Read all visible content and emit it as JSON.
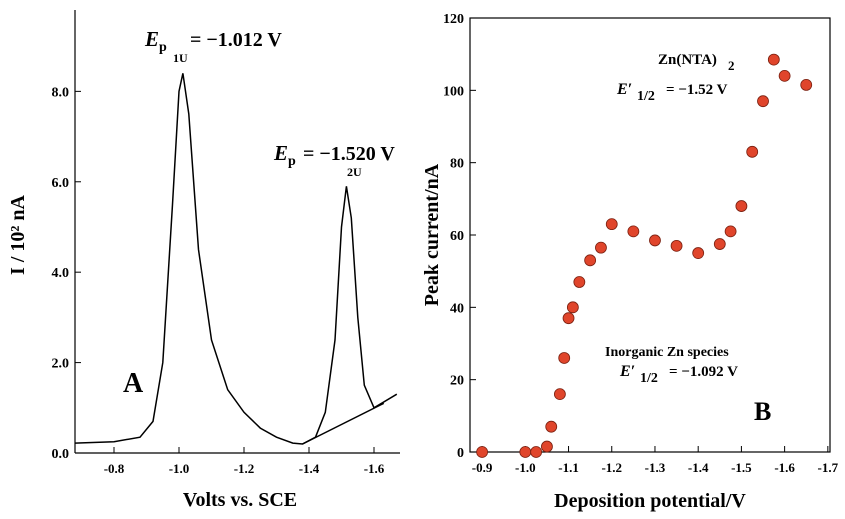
{
  "chart_data": [
    {
      "type": "line",
      "y_label": "I / 10² nA",
      "x_label": "Volts vs. SCE",
      "xlim": [
        -0.68,
        -1.68
      ],
      "ylim": [
        0,
        9.8
      ],
      "xticks": [
        -0.8,
        {
          "value": -1.0,
          "label": "-1.0"
        },
        -1.2,
        -1.4,
        -1.6
      ],
      "yticks": [
        {
          "value": 0,
          "label": "0.0"
        },
        {
          "value": 2,
          "label": "2.0"
        },
        {
          "value": 4,
          "label": "4.0"
        },
        {
          "value": 6,
          "label": "6.0"
        },
        {
          "value": 8,
          "label": "8.0"
        }
      ],
      "series": [
        {
          "color": "#000000",
          "x": [
            -0.68,
            -0.8,
            -0.88,
            -0.92,
            -0.95,
            -0.98,
            -1.0,
            -1.012,
            -1.03,
            -1.06,
            -1.1,
            -1.15,
            -1.2,
            -1.25,
            -1.3,
            -1.35,
            -1.38,
            -1.42,
            -1.45,
            -1.48,
            -1.5,
            -1.515,
            -1.53,
            -1.55,
            -1.57,
            -1.6,
            -1.67
          ],
          "values": [
            0.22,
            0.25,
            0.35,
            0.7,
            2.0,
            5.5,
            8.0,
            8.4,
            7.5,
            4.5,
            2.5,
            1.4,
            0.9,
            0.55,
            0.35,
            0.22,
            0.2,
            0.35,
            0.9,
            2.5,
            5.0,
            5.9,
            5.2,
            3.0,
            1.5,
            1.0,
            1.3
          ]
        },
        {
          "color": "#000000",
          "x": [
            -1.38,
            -1.63
          ],
          "values": [
            0.2,
            1.1
          ]
        }
      ],
      "annotations": [
        {
          "parts": [
            "E",
            "p",
            "1U",
            "= −1.012 V"
          ]
        },
        {
          "parts": [
            "E",
            "p",
            "2U",
            "= −1.520 V"
          ]
        },
        {
          "parts": [
            "A"
          ]
        }
      ]
    },
    {
      "type": "scatter",
      "y_label": "Peak current/nA",
      "x_label": "Deposition potential/V",
      "xlim": [
        -0.872,
        -1.705
      ],
      "ylim": [
        0,
        120
      ],
      "xticks": [
        -0.9,
        {
          "value": -1.0,
          "label": "-1.0"
        },
        -1.1,
        -1.2,
        -1.3,
        -1.4,
        -1.5,
        -1.6,
        -1.7
      ],
      "yticks": [
        0,
        20,
        40,
        60,
        80,
        100,
        120
      ],
      "color": "#e0452b",
      "x": [
        -0.9,
        -1.0,
        -1.025,
        -1.05,
        -1.06,
        -1.08,
        -1.09,
        -1.1,
        -1.11,
        -1.125,
        -1.15,
        -1.175,
        -1.2,
        -1.25,
        -1.3,
        -1.35,
        -1.4,
        -1.45,
        -1.475,
        -1.5,
        -1.525,
        -1.55,
        -1.575,
        -1.6,
        -1.65
      ],
      "values": [
        0,
        0,
        0,
        1.5,
        7,
        16,
        26,
        37,
        40,
        47,
        53,
        56.5,
        63,
        61,
        58.5,
        57,
        55,
        57.5,
        61,
        68,
        83,
        97,
        108.5,
        104,
        101.5
      ],
      "annotations": [
        {
          "parts": [
            "Zn(NTA)",
            "2"
          ]
        },
        {
          "parts": [
            "E′",
            "1/2",
            "= −1.52 V"
          ]
        },
        {
          "parts": [
            "Inorganic Zn species"
          ]
        },
        {
          "parts": [
            "E′",
            "1/2",
            "= −1.092 V"
          ]
        },
        {
          "parts": [
            "B"
          ]
        }
      ]
    }
  ]
}
